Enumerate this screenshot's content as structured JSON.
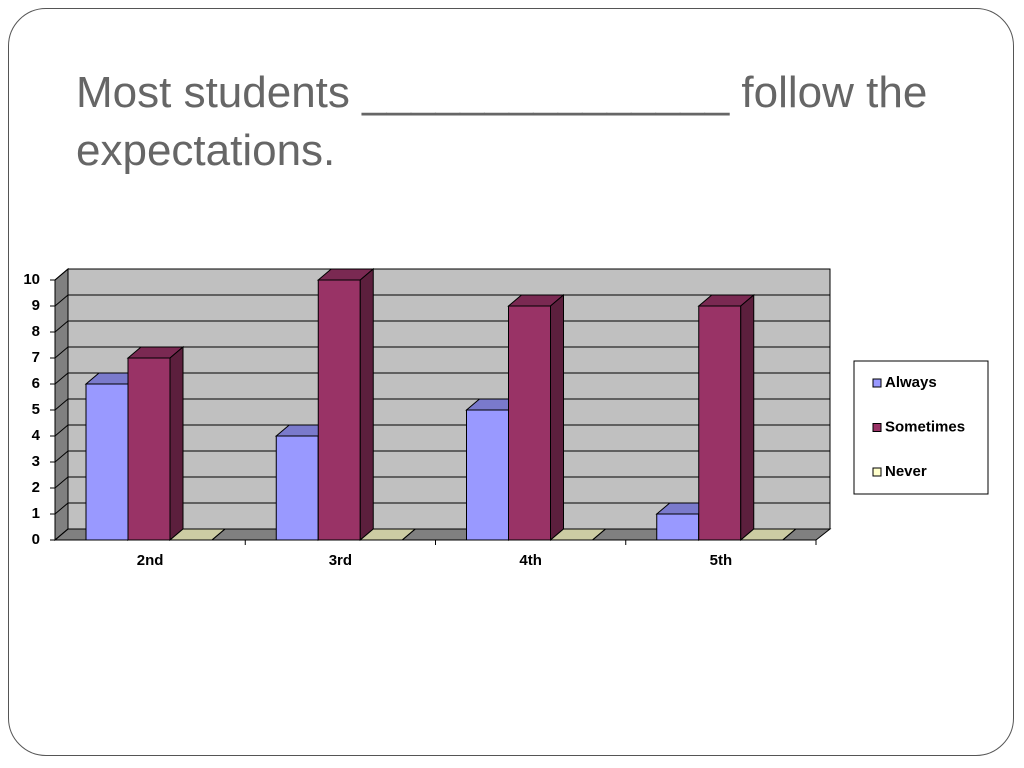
{
  "chart_data": {
    "type": "bar3d",
    "title": "Most students _______________ follow the expectations.",
    "categories": [
      "2nd",
      "3rd",
      "4th",
      "5th"
    ],
    "series": [
      {
        "name": "Always",
        "color": "#9999ff",
        "values": [
          6,
          4,
          5,
          1
        ]
      },
      {
        "name": "Sometimes",
        "color": "#993366",
        "values": [
          7,
          10,
          9,
          9
        ]
      },
      {
        "name": "Never",
        "color": "#ffffcc",
        "values": [
          0,
          0,
          0,
          0
        ]
      }
    ],
    "ylim": [
      0,
      10
    ],
    "yticks": [
      0,
      1,
      2,
      3,
      4,
      5,
      6,
      7,
      8,
      9,
      10
    ],
    "grid": true,
    "legend": "right"
  }
}
